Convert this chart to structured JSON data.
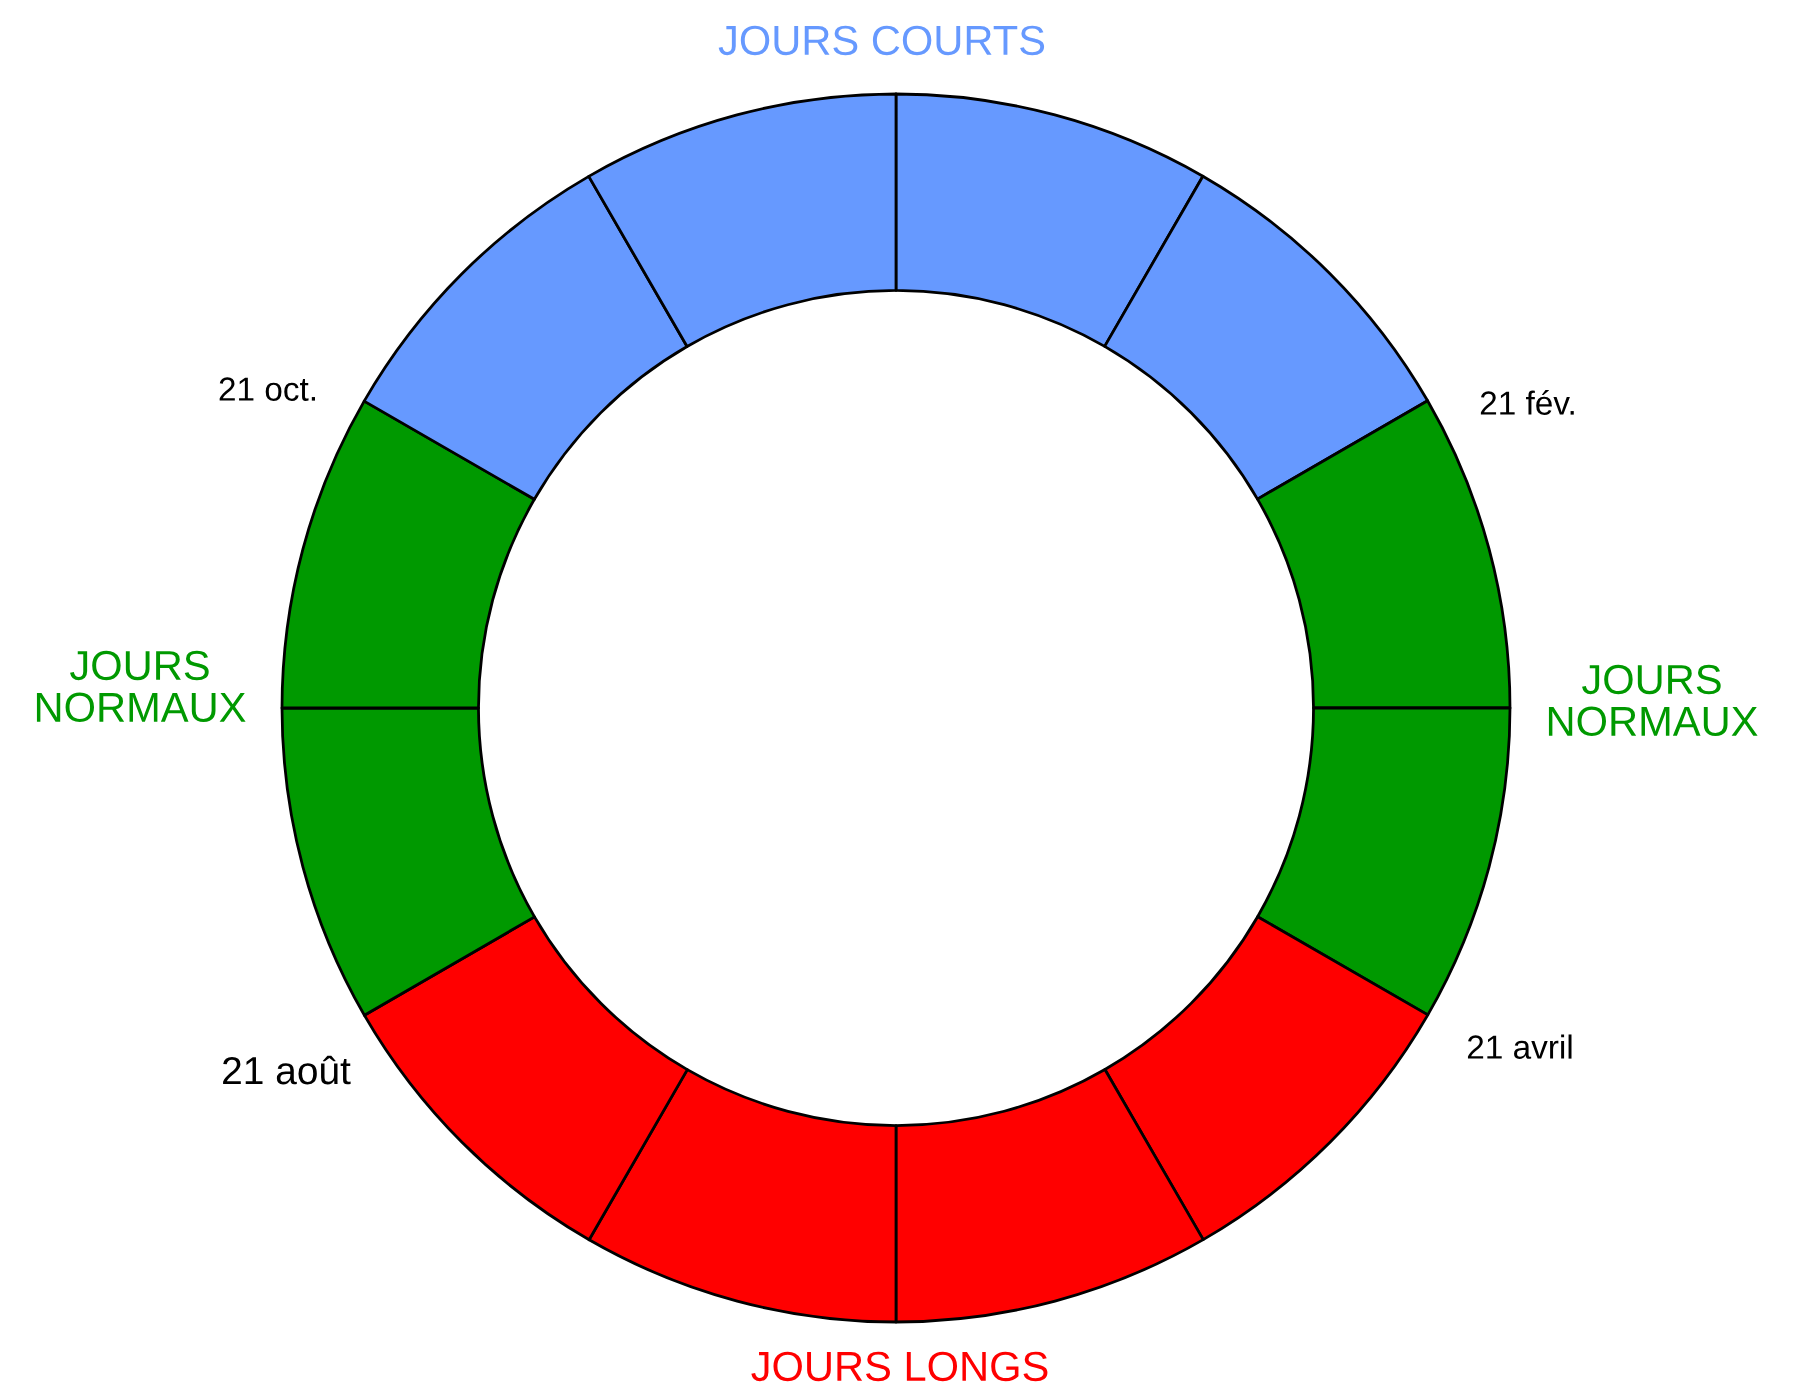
{
  "chart_data": {
    "type": "donut",
    "categories": [
      null,
      null,
      null,
      null,
      null,
      null,
      null,
      null,
      null,
      null,
      null,
      null
    ],
    "values": [
      8.33,
      8.33,
      8.34,
      8.33,
      8.33,
      8.34,
      8.33,
      8.33,
      8.34,
      8.33,
      8.33,
      8.34
    ],
    "colors": [
      "#6699ff",
      "#6699ff",
      "#009900",
      "#009900",
      "#ff0000",
      "#ff0000",
      "#ff0000",
      "#ff0000",
      "#009900",
      "#009900",
      "#6699ff",
      "#6699ff"
    ],
    "annotations": [
      "JOURS COURTS",
      "21 oct.",
      "21 fév.",
      "JOURS\nNORMAUX",
      "JOURS\nNORMAUX",
      "21 août",
      "21 avril",
      "JOURS LONGS"
    ]
  }
}
